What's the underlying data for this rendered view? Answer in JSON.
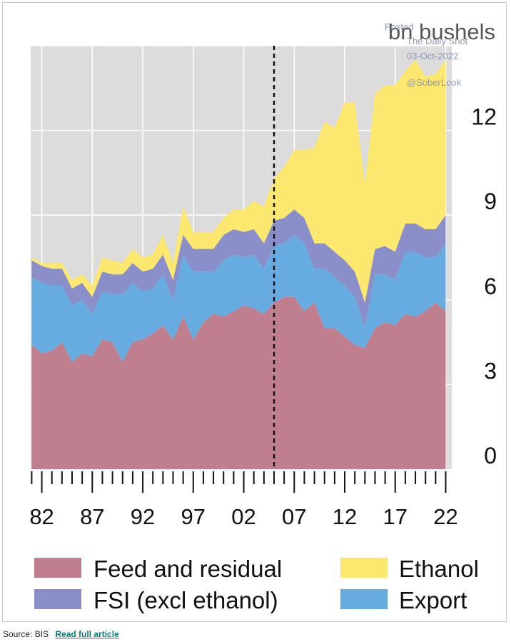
{
  "chart_data": {
    "type": "area",
    "stacked": true,
    "unit_label": "bn bushels",
    "x": [
      1981,
      1982,
      1983,
      1984,
      1985,
      1986,
      1987,
      1988,
      1989,
      1990,
      1991,
      1992,
      1993,
      1994,
      1995,
      1996,
      1997,
      1998,
      1999,
      2000,
      2001,
      2002,
      2003,
      2004,
      2005,
      2006,
      2007,
      2008,
      2009,
      2010,
      2011,
      2012,
      2013,
      2014,
      2015,
      2016,
      2017,
      2018,
      2019,
      2020,
      2021,
      2022
    ],
    "xlim": [
      1980.9,
      2022.6
    ],
    "ylim": [
      0,
      15
    ],
    "yticks": [
      0,
      3,
      6,
      9,
      12
    ],
    "ytick_labels": [
      "0",
      "3",
      "6",
      "9",
      "12"
    ],
    "xtick_labels": [
      {
        "x": 1982,
        "label": "82"
      },
      {
        "x": 1987,
        "label": "87"
      },
      {
        "x": 1992,
        "label": "92"
      },
      {
        "x": 1997,
        "label": "97"
      },
      {
        "x": 2002,
        "label": "02"
      },
      {
        "x": 2007,
        "label": "07"
      },
      {
        "x": 2012,
        "label": "12"
      },
      {
        "x": 2017,
        "label": "17"
      },
      {
        "x": 2022,
        "label": "22"
      }
    ],
    "vline_x": 2005,
    "series": [
      {
        "name": "Feed and residual",
        "color": "#c07f8e",
        "values": [
          4.4,
          4.1,
          4.2,
          4.5,
          3.8,
          4.1,
          4.0,
          4.6,
          4.5,
          3.8,
          4.5,
          4.6,
          4.8,
          5.1,
          4.6,
          5.4,
          4.6,
          5.2,
          5.5,
          5.4,
          5.6,
          5.8,
          5.7,
          5.5,
          5.9,
          6.1,
          6.1,
          5.6,
          5.9,
          5.0,
          5.0,
          4.7,
          4.4,
          4.3,
          5.0,
          5.2,
          5.1,
          5.5,
          5.4,
          5.6,
          5.9,
          5.6
        ]
      },
      {
        "name": "Export",
        "color": "#67ace0",
        "values": [
          2.4,
          2.5,
          2.3,
          2.0,
          2.0,
          1.9,
          1.5,
          1.7,
          1.7,
          2.4,
          2.1,
          1.7,
          1.6,
          1.8,
          1.4,
          2.2,
          2.4,
          1.8,
          1.5,
          2.0,
          2.0,
          1.7,
          1.9,
          1.6,
          2.0,
          1.9,
          2.2,
          2.4,
          1.2,
          2.1,
          1.8,
          1.8,
          1.7,
          0.7,
          1.9,
          1.7,
          1.6,
          2.2,
          2.3,
          1.9,
          1.6,
          2.4
        ]
      },
      {
        "name": "FSI (excl ethanol)",
        "color": "#8a8fca",
        "values": [
          0.6,
          0.6,
          0.6,
          0.6,
          0.6,
          0.6,
          0.6,
          0.7,
          0.7,
          0.7,
          0.7,
          0.7,
          0.7,
          0.7,
          0.7,
          0.7,
          0.8,
          0.8,
          0.8,
          0.9,
          0.9,
          0.9,
          0.9,
          0.9,
          0.9,
          0.9,
          0.9,
          0.9,
          0.9,
          0.9,
          0.9,
          0.9,
          0.9,
          0.9,
          0.9,
          1.0,
          1.0,
          1.0,
          1.0,
          1.0,
          1.0,
          1.0
        ]
      },
      {
        "name": "Ethanol",
        "color": "#fde86f",
        "values": [
          0.1,
          0.1,
          0.2,
          0.2,
          0.3,
          0.3,
          0.4,
          0.5,
          0.5,
          0.4,
          0.5,
          0.5,
          0.5,
          0.7,
          0.6,
          1.0,
          0.6,
          0.6,
          0.6,
          0.6,
          0.7,
          0.8,
          1.0,
          1.3,
          1.5,
          1.8,
          2.1,
          2.4,
          3.4,
          4.3,
          4.4,
          5.6,
          6.0,
          4.2,
          5.5,
          5.7,
          5.9,
          5.4,
          5.8,
          5.4,
          5.5,
          5.5
        ]
      }
    ],
    "legend": [
      "Feed and residual",
      "Ethanol",
      "FSI (excl ethanol)",
      "Export"
    ],
    "legend_position": "bottom"
  },
  "watermark": {
    "line1": "Posted",
    "line2": "The Daily Shot",
    "line3": "03-Oct-2022",
    "line4": "@SoberLook"
  },
  "footer": {
    "source": "Source: BIS",
    "link_label": "Read full article"
  },
  "colors": {
    "plot_bg": "#dcdcdc",
    "gridline": "#ffffff"
  }
}
